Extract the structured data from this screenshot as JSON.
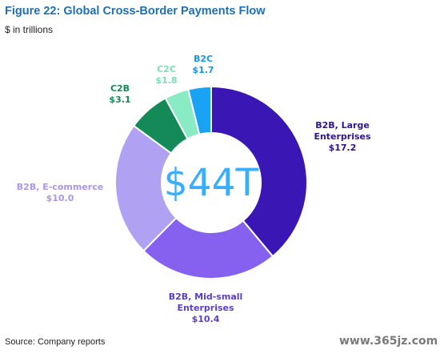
{
  "figure": {
    "title": "Figure 22: Global Cross-Border Payments Flow",
    "subtitle": "$ in trillions",
    "source": "Source: Company reports",
    "watermark": "www.365jz.com"
  },
  "chart_data": {
    "type": "pie",
    "donut": true,
    "center_label": "$44T",
    "center_color": "#3aaefb",
    "slices": [
      {
        "name": "B2B, Large Enterprises",
        "label_lines": [
          "B2B, Large",
          "Enterprises"
        ],
        "value_label": "$17.2",
        "value": 17.2,
        "color": "#3a16b5",
        "label_color": "#2e1687"
      },
      {
        "name": "B2B, Mid-small Enterprises",
        "label_lines": [
          "B2B, Mid-small",
          "Enterprises"
        ],
        "value_label": "$10.4",
        "value": 10.4,
        "color": "#8660ef",
        "label_color": "#5b3fc4"
      },
      {
        "name": "B2B, E-commerce",
        "label_lines": [
          "B2B, E-commerce"
        ],
        "value_label": "$10.0",
        "value": 10.0,
        "color": "#b1a1f3",
        "label_color": "#a997ec"
      },
      {
        "name": "C2B",
        "label_lines": [
          "C2B"
        ],
        "value_label": "$3.1",
        "value": 3.1,
        "color": "#138a57",
        "label_color": "#138a57"
      },
      {
        "name": "C2C",
        "label_lines": [
          "C2C"
        ],
        "value_label": "$1.8",
        "value": 1.8,
        "color": "#88ebc3",
        "label_color": "#7fdcb7"
      },
      {
        "name": "B2C",
        "label_lines": [
          "B2C"
        ],
        "value_label": "$1.7",
        "value": 1.7,
        "color": "#1aa3f4",
        "label_color": "#1a95e6"
      }
    ]
  }
}
